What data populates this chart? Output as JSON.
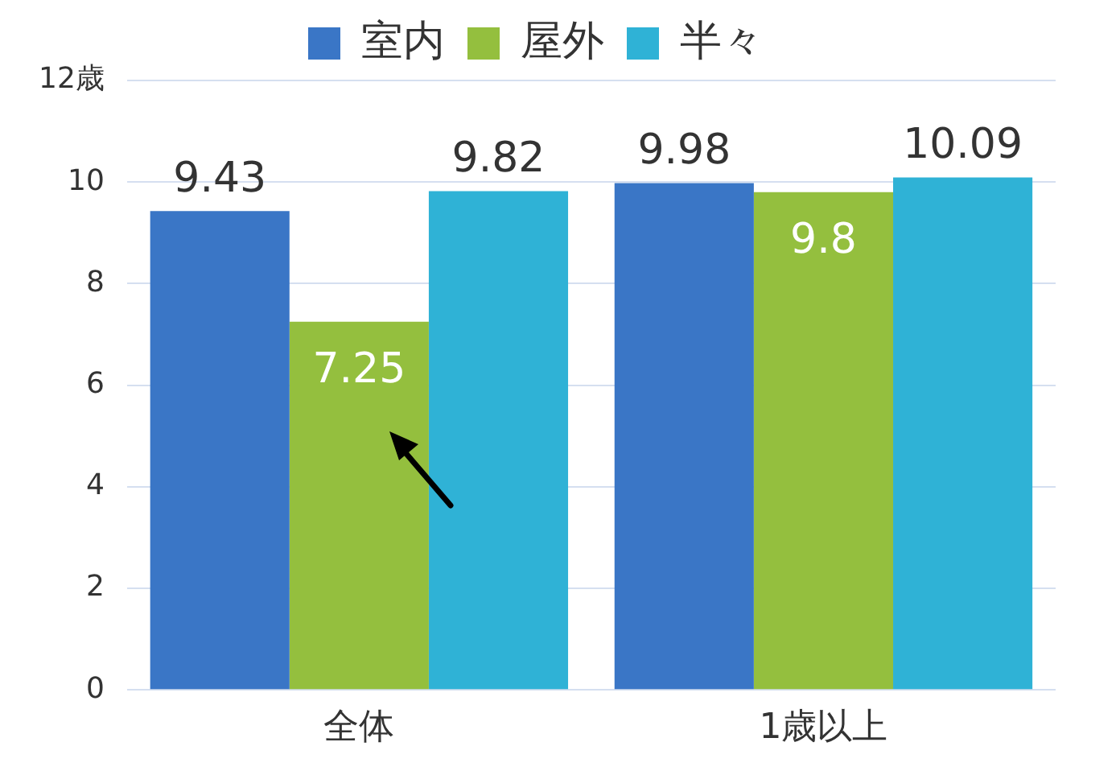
{
  "chart_data": {
    "type": "bar",
    "categories": [
      "全体",
      "1歳以上"
    ],
    "series": [
      {
        "name": "室内",
        "color": "#3a76c6",
        "values": [
          9.43,
          9.98
        ]
      },
      {
        "name": "屋外",
        "color": "#94bf3e",
        "values": [
          7.25,
          9.8
        ]
      },
      {
        "name": "半々",
        "color": "#2fb2d6",
        "values": [
          9.82,
          10.09
        ]
      }
    ],
    "ylim": [
      0,
      12
    ],
    "yticks": [
      0,
      2,
      4,
      6,
      8,
      10,
      {
        "value": 12,
        "label": "12歳"
      }
    ],
    "grid": "y",
    "legend": "top",
    "data_labels": true
  }
}
